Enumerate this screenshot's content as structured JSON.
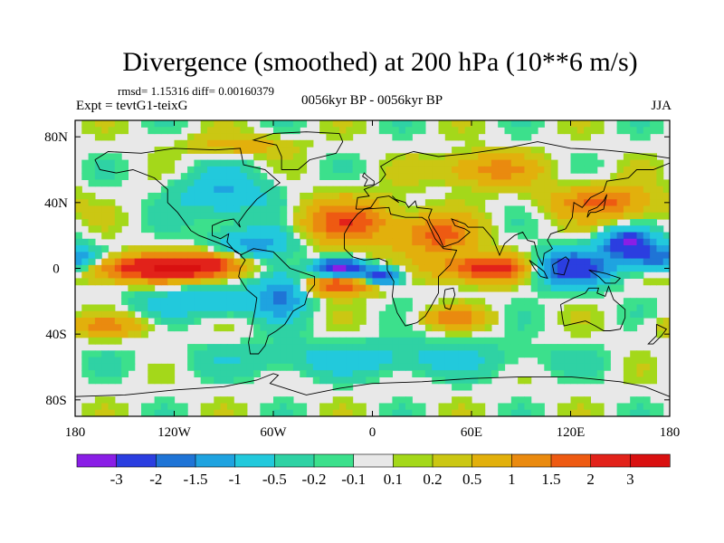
{
  "chart_data": {
    "type": "heatmap",
    "title": "Divergence (smoothed) at 200 hPa (10**6 m/s)",
    "stats_line": "rmsd= 1.15316 diff= 0.00160379",
    "left_label": "Expt = tevtG1-teixG",
    "center_label": "0056kyr BP - 0056kyr BP",
    "right_label": "JJA",
    "xlim": [
      -180,
      180
    ],
    "ylim": [
      -90,
      90
    ],
    "x_ticks": [
      {
        "value": -180,
        "label": "180"
      },
      {
        "value": -120,
        "label": "120W"
      },
      {
        "value": -60,
        "label": "60W"
      },
      {
        "value": 0,
        "label": "0"
      },
      {
        "value": 60,
        "label": "60E"
      },
      {
        "value": 120,
        "label": "120E"
      },
      {
        "value": 180,
        "label": "180"
      }
    ],
    "y_ticks": [
      {
        "value": 80,
        "label": "80N"
      },
      {
        "value": 40,
        "label": "40N"
      },
      {
        "value": 0,
        "label": "0"
      },
      {
        "value": -40,
        "label": "40S"
      },
      {
        "value": -80,
        "label": "80S"
      }
    ],
    "colorbar": {
      "levels": [
        "-3",
        "-2",
        "-1.5",
        "-1",
        "-0.5",
        "-0.2",
        "-0.1",
        "0.1",
        "0.2",
        "0.5",
        "1",
        "1.5",
        "2",
        "3"
      ],
      "colors": [
        "#8a1ee6",
        "#2b3ee0",
        "#1f74d6",
        "#1fa3e0",
        "#22c9dc",
        "#2fd2a4",
        "#3ce08c",
        "#e8e8e8",
        "#a4d81a",
        "#cbc713",
        "#e2b00c",
        "#ea8a0f",
        "#ee5a12",
        "#e2221a",
        "#d91010"
      ]
    },
    "features": [
      {
        "name": "central-pacific-positive",
        "lon": -135,
        "lat": 0,
        "rlon": 40,
        "rlat": 8,
        "value": 2.6
      },
      {
        "name": "east-pacific-positive",
        "lon": -100,
        "lat": 2,
        "rlon": 22,
        "rlat": 7,
        "value": 2.0
      },
      {
        "name": "north-atlantic-positive",
        "lon": -15,
        "lat": 28,
        "rlon": 28,
        "rlat": 14,
        "value": 1.8
      },
      {
        "name": "arabian-positive",
        "lon": 40,
        "lat": 20,
        "rlon": 22,
        "rlat": 12,
        "value": 1.7
      },
      {
        "name": "indian-ocean-positive",
        "lon": 70,
        "lat": 0,
        "rlon": 28,
        "rlat": 8,
        "value": 2.5
      },
      {
        "name": "south-atlantic-positive",
        "lon": -20,
        "lat": -10,
        "rlon": 20,
        "rlat": 6,
        "value": 2.2
      },
      {
        "name": "north-pacific-positive",
        "lon": 140,
        "lat": 40,
        "rlon": 30,
        "rlat": 10,
        "value": 1.6
      },
      {
        "name": "south-indian-positive",
        "lon": 50,
        "lat": -30,
        "rlon": 20,
        "rlat": 6,
        "value": 1.2
      },
      {
        "name": "south-pacific-positive",
        "lon": -160,
        "lat": -35,
        "rlon": 25,
        "rlat": 6,
        "value": 1.1
      },
      {
        "name": "equatorial-atlantic-negative",
        "lon": -20,
        "lat": 0,
        "rlon": 14,
        "rlat": 5,
        "value": -3.2
      },
      {
        "name": "gulf-of-guinea-negative",
        "lon": 5,
        "lat": -5,
        "rlon": 12,
        "rlat": 5,
        "value": -2.5
      },
      {
        "name": "warm-pool-negative",
        "lon": 120,
        "lat": 0,
        "rlon": 25,
        "rlat": 10,
        "value": -2.6
      },
      {
        "name": "west-pacific-negative",
        "lon": 155,
        "lat": 15,
        "rlon": 15,
        "rlat": 8,
        "value": -3.0
      },
      {
        "name": "date-line-negative",
        "lon": 175,
        "lat": 5,
        "rlon": 20,
        "rlat": 8,
        "value": -2.0
      },
      {
        "name": "caribbean-negative",
        "lon": -70,
        "lat": 15,
        "rlon": 25,
        "rlat": 10,
        "value": -1.2
      },
      {
        "name": "north-america-negative",
        "lon": -90,
        "lat": 45,
        "rlon": 30,
        "rlat": 15,
        "value": -1.0
      },
      {
        "name": "south-america-negative",
        "lon": -55,
        "lat": -15,
        "rlon": 15,
        "rlat": 15,
        "value": -1.4
      },
      {
        "name": "east-pacific-south-negative",
        "lon": -100,
        "lat": -20,
        "rlon": 40,
        "rlat": 10,
        "value": -0.9
      },
      {
        "name": "siberia-positive",
        "lon": 70,
        "lat": 60,
        "rlon": 30,
        "rlat": 10,
        "value": 1.2
      },
      {
        "name": "southern-ocean-negative",
        "lon": 0,
        "lat": -55,
        "rlon": 100,
        "rlat": 10,
        "value": -0.7
      },
      {
        "name": "arctic-positive",
        "lon": -80,
        "lat": 75,
        "rlon": 30,
        "rlat": 6,
        "value": 0.8
      }
    ]
  }
}
